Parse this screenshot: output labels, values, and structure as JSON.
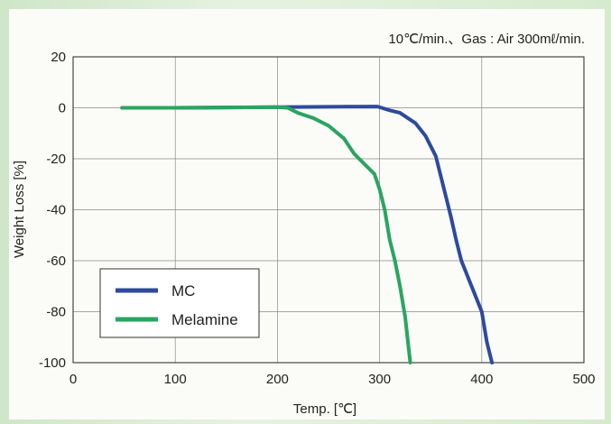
{
  "chart_data": {
    "type": "line",
    "title": "",
    "annotation": "10℃/min.、Gas : Air 300mℓ/min.",
    "xlabel": "Temp. [℃]",
    "ylabel": "Weight Loss [%]",
    "xlim": [
      0,
      500
    ],
    "ylim": [
      -100,
      20
    ],
    "xticks": [
      0,
      100,
      200,
      300,
      400,
      500
    ],
    "yticks": [
      20,
      0,
      -20,
      -40,
      -60,
      -80,
      -100
    ],
    "grid": true,
    "legend_position": "bottom-left",
    "series": [
      {
        "name": "MC",
        "color": "#2e4a9e",
        "x": [
          48,
          100,
          200,
          298,
          310,
          320,
          335,
          345,
          355,
          365,
          370,
          375,
          380,
          390,
          400,
          405,
          410
        ],
        "y": [
          0,
          0,
          0.3,
          0.5,
          -1,
          -2,
          -6,
          -11,
          -19,
          -35,
          -43,
          -52,
          -60,
          -70,
          -80,
          -92,
          -100
        ]
      },
      {
        "name": "Melamine",
        "color": "#2aa561",
        "x": [
          48,
          100,
          200,
          210,
          220,
          235,
          250,
          265,
          275,
          285,
          290,
          295,
          300,
          305,
          310,
          315,
          320,
          325,
          330
        ],
        "y": [
          0,
          0,
          0.3,
          0,
          -2,
          -4,
          -7,
          -12,
          -18,
          -22,
          -24,
          -26,
          -32,
          -40,
          -52,
          -60,
          -70,
          -82,
          -100
        ]
      }
    ]
  }
}
